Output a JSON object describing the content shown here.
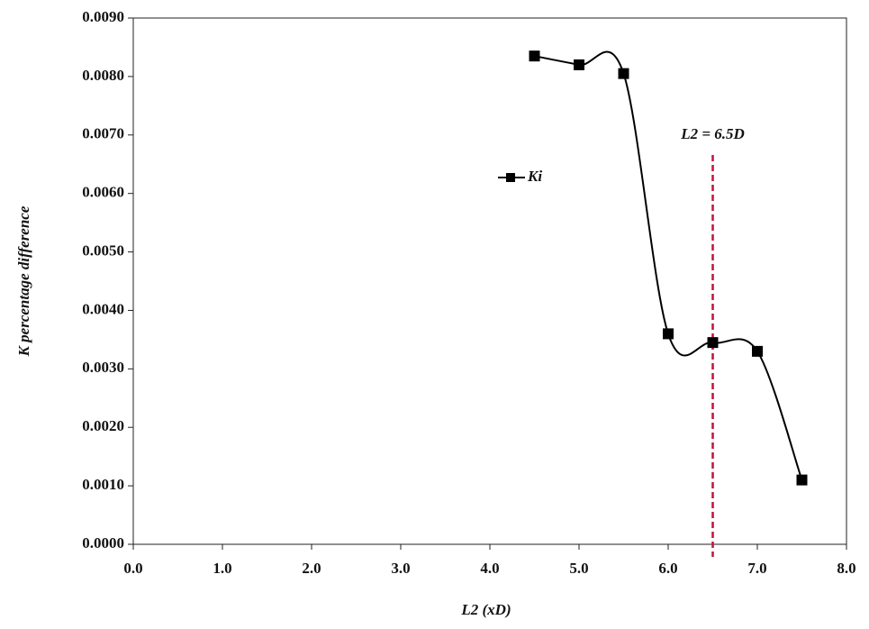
{
  "chart_data": {
    "type": "line",
    "x_label": "L2 (xD)",
    "y_label": "K percentage difference",
    "x": [
      4.5,
      5.0,
      5.5,
      6.0,
      6.5,
      7.0,
      7.5
    ],
    "series": [
      {
        "name": "Ki",
        "color": "#000000",
        "values": [
          0.00835,
          0.0082,
          0.00805,
          0.0036,
          0.00345,
          0.0033,
          0.0011
        ]
      }
    ],
    "xlim": [
      0,
      8
    ],
    "xticks": [
      {
        "value": 0,
        "label": "0.0"
      },
      {
        "value": 1,
        "label": "1.0"
      },
      {
        "value": 2,
        "label": "2.0"
      },
      {
        "value": 3,
        "label": "3.0"
      },
      {
        "value": 4,
        "label": "4.0"
      },
      {
        "value": 5,
        "label": "5.0"
      },
      {
        "value": 6,
        "label": "6.0"
      },
      {
        "value": 7,
        "label": "7.0"
      },
      {
        "value": 8,
        "label": "8.0"
      }
    ],
    "ylim": [
      0,
      0.009
    ],
    "yticks": [
      {
        "value": 0,
        "label": "0.0000"
      },
      {
        "value": 0.001,
        "label": "0.0010"
      },
      {
        "value": 0.002,
        "label": "0.0020"
      },
      {
        "value": 0.003,
        "label": "0.0030"
      },
      {
        "value": 0.004,
        "label": "0.0040"
      },
      {
        "value": 0.005,
        "label": "0.0050"
      },
      {
        "value": 0.006,
        "label": "0.0060"
      },
      {
        "value": 0.007,
        "label": "0.0070"
      },
      {
        "value": 0.008,
        "label": "0.0080"
      },
      {
        "value": 0.009,
        "label": "0.0090"
      }
    ],
    "reference_line": {
      "x": 6.5,
      "label": "L2 = 6.5D",
      "color": "#c0143c"
    },
    "grid": false
  }
}
